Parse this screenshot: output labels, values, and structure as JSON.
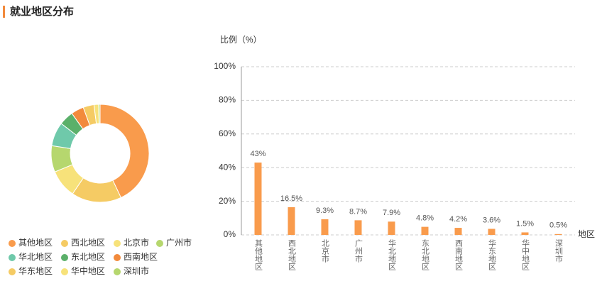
{
  "title": "就业地区分布",
  "chart_data": [
    {
      "type": "pie",
      "categories": [
        "其他地区",
        "西北地区",
        "北京市",
        "广州市",
        "华北地区",
        "东北地区",
        "西南地区",
        "华东地区",
        "华中地区",
        "深圳市"
      ],
      "values": [
        43,
        16.5,
        9.3,
        8.7,
        7.9,
        4.8,
        4.2,
        3.6,
        1.5,
        0.5
      ],
      "colors": [
        "#f99b4c",
        "#f5cb64",
        "#f7e27a",
        "#b6d76e",
        "#6fc9aa",
        "#5bb06a",
        "#f28a3c",
        "#f5cb64",
        "#f7e27a",
        "#b6d76e"
      ],
      "donut": true
    },
    {
      "type": "bar",
      "ylabel": "比例（%）",
      "xlabel": "地区",
      "categories": [
        "其他地区",
        "西北地区",
        "北京市",
        "广州市",
        "华北地区",
        "东北地区",
        "西南地区",
        "华东地区",
        "华中地区",
        "深圳市"
      ],
      "values": [
        43,
        16.5,
        9.3,
        8.7,
        7.9,
        4.8,
        4.2,
        3.6,
        1.5,
        0.5
      ],
      "value_labels": [
        "43%",
        "16.5%",
        "9.3%",
        "8.7%",
        "7.9%",
        "4.8%",
        "4.2%",
        "3.6%",
        "1.5%",
        "0.5%"
      ],
      "color": "#f99b4c",
      "ylim": [
        0,
        100
      ],
      "yticks": [
        {
          "value": 0,
          "label": "0%"
        },
        {
          "value": 20,
          "label": "20%"
        },
        {
          "value": 40,
          "label": "40%"
        },
        {
          "value": 60,
          "label": "60%"
        },
        {
          "value": 80,
          "label": "80%"
        },
        {
          "value": 100,
          "label": "100%"
        }
      ],
      "grid": true
    }
  ]
}
